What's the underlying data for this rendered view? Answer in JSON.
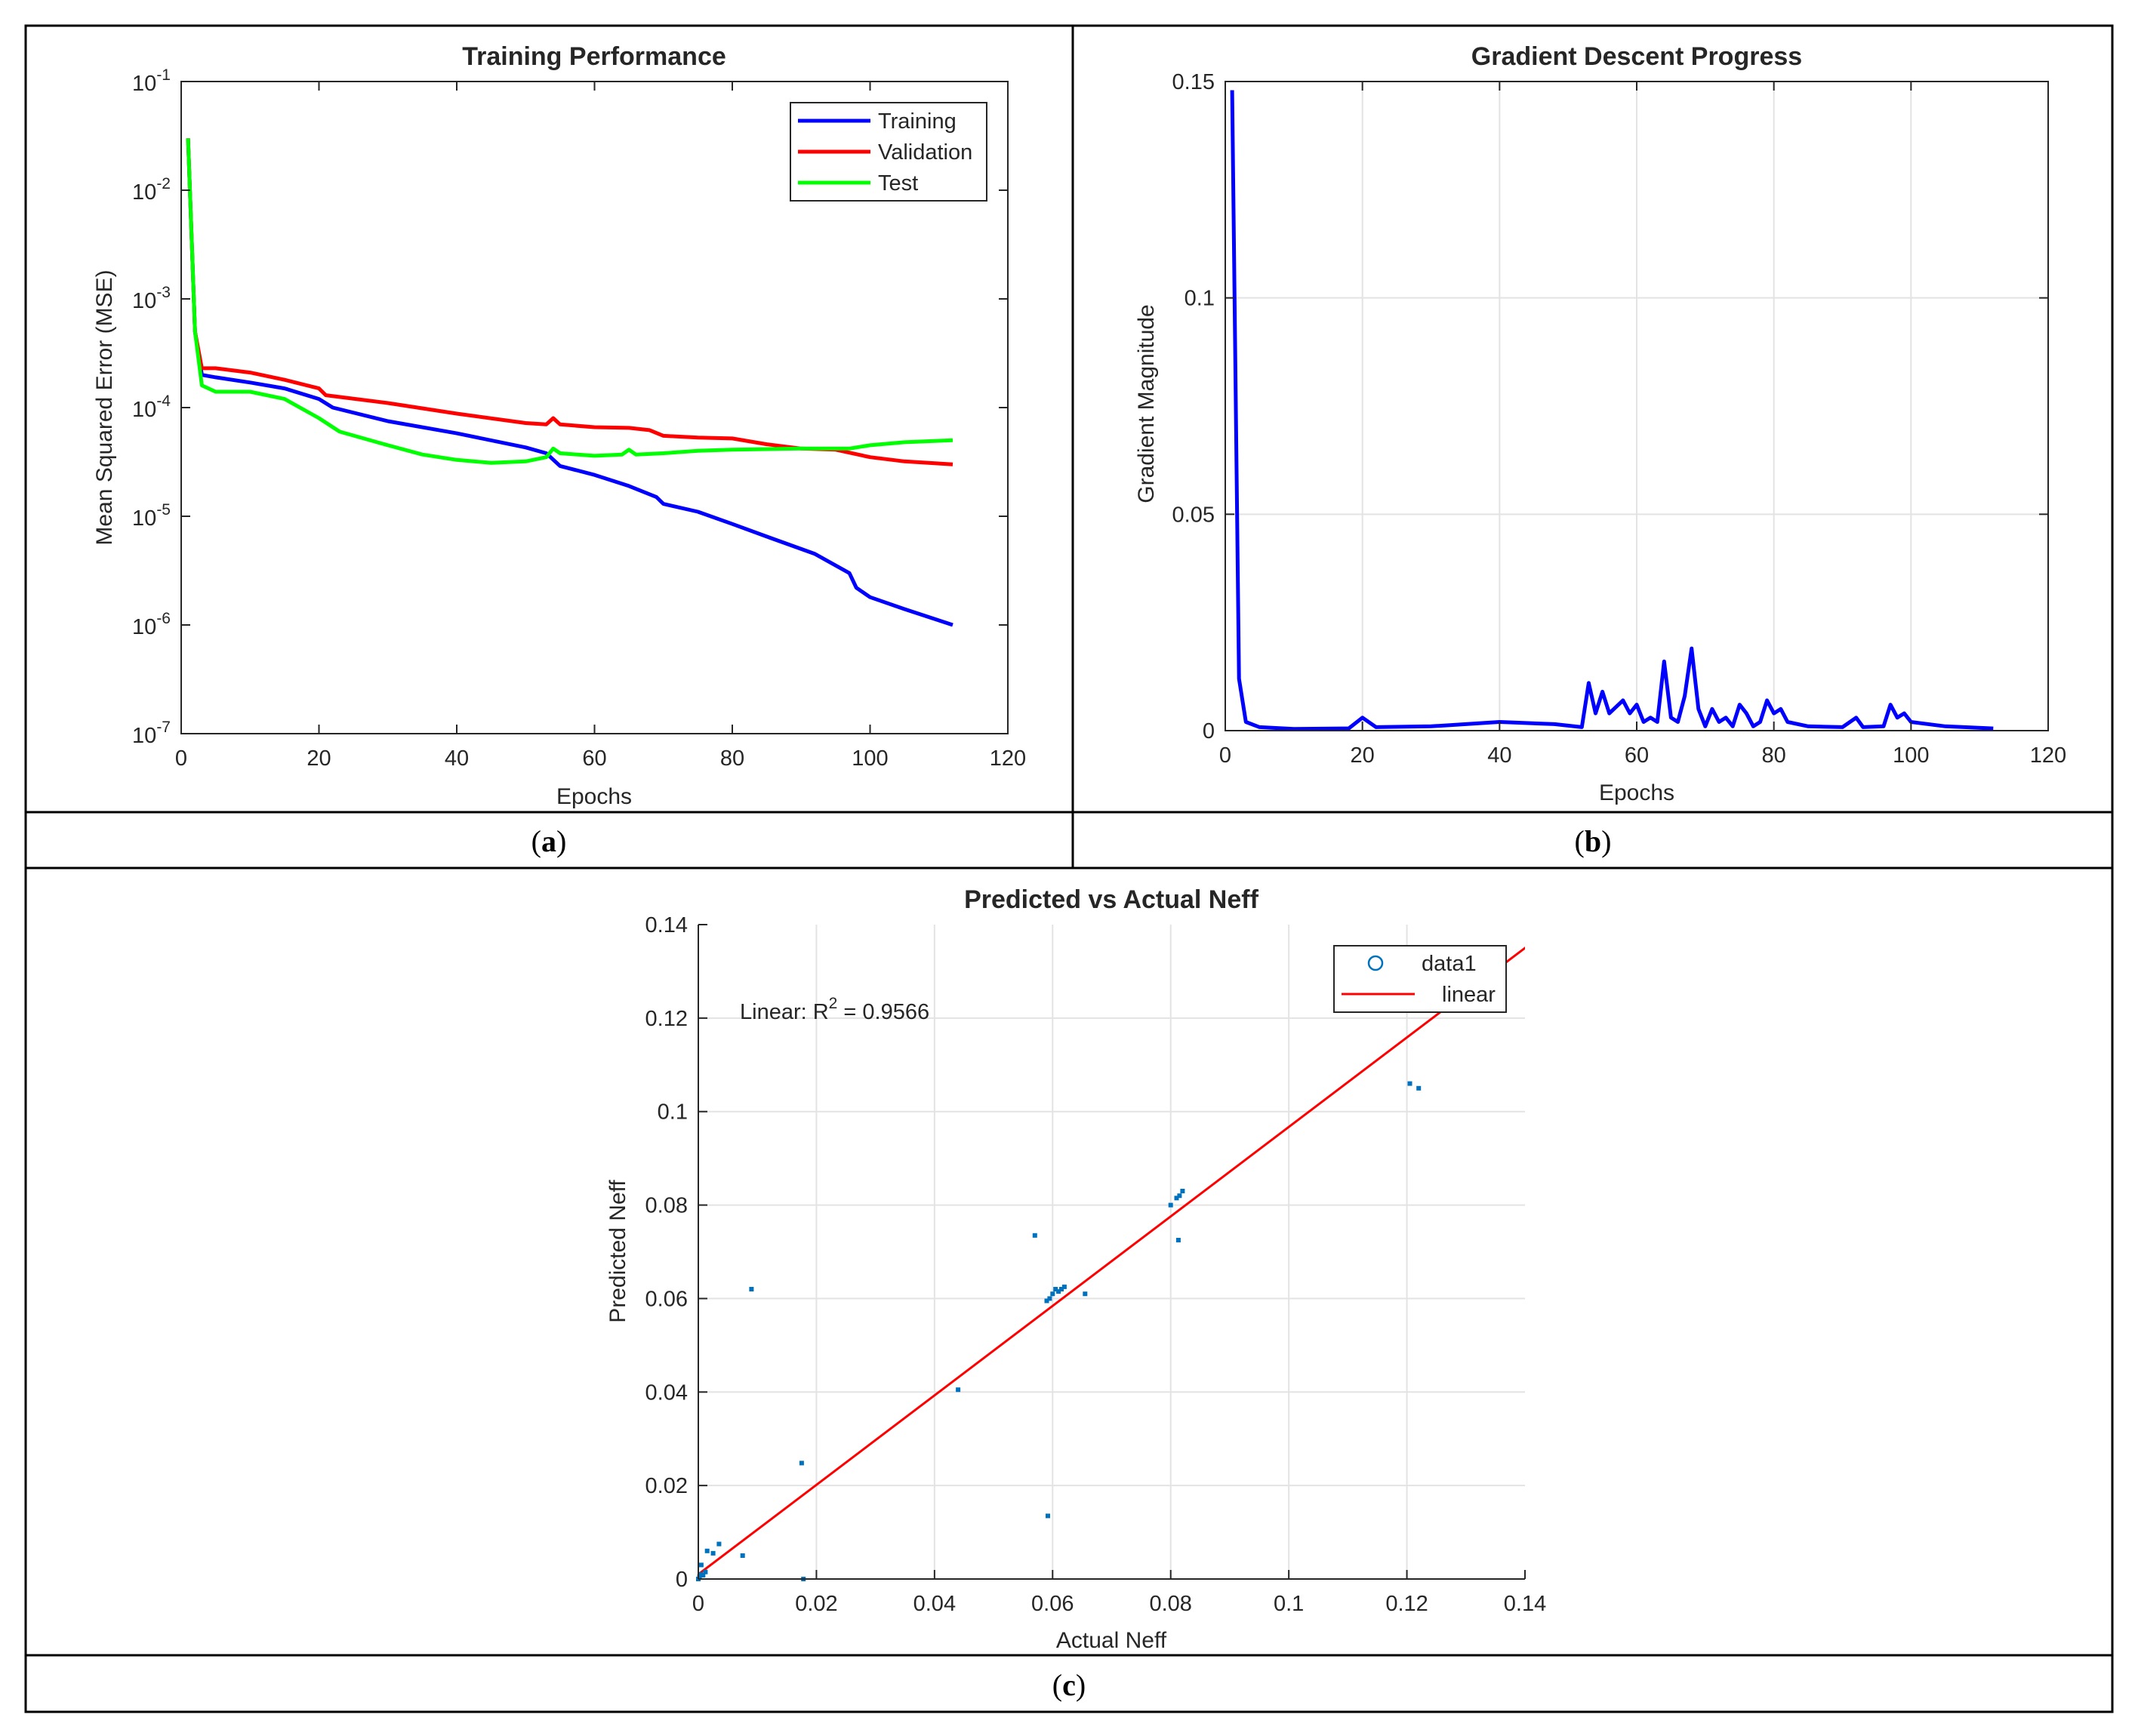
{
  "chart_data": [
    {
      "id": "a",
      "type": "line",
      "title": "Training Performance",
      "xlabel": "Epochs",
      "ylabel": "Mean Squared Error (MSE)",
      "xlim": [
        0,
        120
      ],
      "ylim_log10": [
        -7,
        -1
      ],
      "yscale": "log",
      "xticks": [
        "0",
        "20",
        "40",
        "60",
        "80",
        "100",
        "120"
      ],
      "yticks": [
        {
          "base": "10",
          "exp": "-7"
        },
        {
          "base": "10",
          "exp": "-6"
        },
        {
          "base": "10",
          "exp": "-5"
        },
        {
          "base": "10",
          "exp": "-4"
        },
        {
          "base": "10",
          "exp": "-3"
        },
        {
          "base": "10",
          "exp": "-2"
        },
        {
          "base": "10",
          "exp": "-1"
        }
      ],
      "legend_position": "top-right",
      "series": [
        {
          "name": "Training",
          "color": "#0000ff",
          "points": [
            [
              1,
              0.03
            ],
            [
              2,
              0.0005
            ],
            [
              3,
              0.0002
            ],
            [
              5,
              0.00019
            ],
            [
              10,
              0.00017
            ],
            [
              15,
              0.00015
            ],
            [
              20,
              0.00012
            ],
            [
              22,
              0.0001
            ],
            [
              30,
              7.5e-05
            ],
            [
              40,
              5.8e-05
            ],
            [
              50,
              4.3e-05
            ],
            [
              53,
              3.8e-05
            ],
            [
              55,
              2.9e-05
            ],
            [
              60,
              2.4e-05
            ],
            [
              65,
              1.9e-05
            ],
            [
              69,
              1.5e-05
            ],
            [
              70,
              1.3e-05
            ],
            [
              75,
              1.1e-05
            ],
            [
              80,
              8.5e-06
            ],
            [
              85,
              6.5e-06
            ],
            [
              92,
              4.5e-06
            ],
            [
              97,
              3e-06
            ],
            [
              98,
              2.2e-06
            ],
            [
              100,
              1.8e-06
            ],
            [
              105,
              1.4e-06
            ],
            [
              110,
              1.1e-06
            ],
            [
              112,
              1e-06
            ]
          ]
        },
        {
          "name": "Validation",
          "color": "#ff0000",
          "points": [
            [
              1,
              0.03
            ],
            [
              2,
              0.0005
            ],
            [
              3,
              0.00023
            ],
            [
              5,
              0.00023
            ],
            [
              10,
              0.00021
            ],
            [
              15,
              0.00018
            ],
            [
              20,
              0.00015
            ],
            [
              21,
              0.00013
            ],
            [
              30,
              0.00011
            ],
            [
              40,
              8.8e-05
            ],
            [
              50,
              7.2e-05
            ],
            [
              53,
              7e-05
            ],
            [
              54,
              8e-05
            ],
            [
              55,
              7e-05
            ],
            [
              60,
              6.6e-05
            ],
            [
              65,
              6.5e-05
            ],
            [
              68,
              6.2e-05
            ],
            [
              70,
              5.5e-05
            ],
            [
              75,
              5.3e-05
            ],
            [
              80,
              5.2e-05
            ],
            [
              85,
              4.6e-05
            ],
            [
              90,
              4.2e-05
            ],
            [
              95,
              4.1e-05
            ],
            [
              100,
              3.5e-05
            ],
            [
              105,
              3.2e-05
            ],
            [
              112,
              3e-05
            ]
          ]
        },
        {
          "name": "Test",
          "color": "#00ff00",
          "points": [
            [
              1,
              0.03
            ],
            [
              2,
              0.0005
            ],
            [
              3,
              0.00016
            ],
            [
              5,
              0.00014
            ],
            [
              10,
              0.00014
            ],
            [
              15,
              0.00012
            ],
            [
              20,
              8e-05
            ],
            [
              23,
              6e-05
            ],
            [
              30,
              4.5e-05
            ],
            [
              35,
              3.7e-05
            ],
            [
              40,
              3.3e-05
            ],
            [
              45,
              3.1e-05
            ],
            [
              50,
              3.2e-05
            ],
            [
              53,
              3.5e-05
            ],
            [
              54,
              4.2e-05
            ],
            [
              55,
              3.8e-05
            ],
            [
              60,
              3.6e-05
            ],
            [
              64,
              3.7e-05
            ],
            [
              65,
              4.1e-05
            ],
            [
              66,
              3.7e-05
            ],
            [
              70,
              3.8e-05
            ],
            [
              75,
              4e-05
            ],
            [
              80,
              4.1e-05
            ],
            [
              90,
              4.2e-05
            ],
            [
              97,
              4.2e-05
            ],
            [
              100,
              4.5e-05
            ],
            [
              105,
              4.8e-05
            ],
            [
              112,
              5e-05
            ]
          ]
        }
      ]
    },
    {
      "id": "b",
      "type": "line",
      "title": "Gradient Descent Progress",
      "xlabel": "Epochs",
      "ylabel": "Gradient Magnitude",
      "xlim": [
        0,
        120
      ],
      "ylim": [
        0,
        0.15
      ],
      "xticks": [
        "0",
        "20",
        "40",
        "60",
        "80",
        "100",
        "120"
      ],
      "yticks": [
        {
          "v": 0,
          "label": "0"
        },
        {
          "v": 0.05,
          "label": "0.05"
        },
        {
          "v": 0.1,
          "label": "0.1"
        },
        {
          "v": 0.15,
          "label": "0.15"
        }
      ],
      "series": [
        {
          "name": "Gradient",
          "color": "#0000ff",
          "points": [
            [
              1,
              0.148
            ],
            [
              2,
              0.012
            ],
            [
              3,
              0.002
            ],
            [
              5,
              0.0008
            ],
            [
              10,
              0.0004
            ],
            [
              18,
              0.0005
            ],
            [
              20,
              0.003
            ],
            [
              22,
              0.0008
            ],
            [
              30,
              0.001
            ],
            [
              40,
              0.002
            ],
            [
              48,
              0.0015
            ],
            [
              52,
              0.0008
            ],
            [
              53,
              0.011
            ],
            [
              54,
              0.004
            ],
            [
              55,
              0.009
            ],
            [
              56,
              0.004
            ],
            [
              58,
              0.007
            ],
            [
              59,
              0.004
            ],
            [
              60,
              0.006
            ],
            [
              61,
              0.002
            ],
            [
              62,
              0.003
            ],
            [
              63,
              0.002
            ],
            [
              64,
              0.016
            ],
            [
              65,
              0.003
            ],
            [
              66,
              0.002
            ],
            [
              67,
              0.008
            ],
            [
              68,
              0.019
            ],
            [
              69,
              0.005
            ],
            [
              70,
              0.001
            ],
            [
              71,
              0.005
            ],
            [
              72,
              0.002
            ],
            [
              73,
              0.003
            ],
            [
              74,
              0.001
            ],
            [
              75,
              0.006
            ],
            [
              76,
              0.004
            ],
            [
              77,
              0.001
            ],
            [
              78,
              0.002
            ],
            [
              79,
              0.007
            ],
            [
              80,
              0.004
            ],
            [
              81,
              0.005
            ],
            [
              82,
              0.002
            ],
            [
              85,
              0.001
            ],
            [
              90,
              0.0008
            ],
            [
              92,
              0.003
            ],
            [
              93,
              0.0008
            ],
            [
              96,
              0.001
            ],
            [
              97,
              0.006
            ],
            [
              98,
              0.003
            ],
            [
              99,
              0.004
            ],
            [
              100,
              0.002
            ],
            [
              105,
              0.001
            ],
            [
              112,
              0.0005
            ]
          ]
        }
      ]
    },
    {
      "id": "c",
      "type": "scatter",
      "title": "Predicted vs Actual Neff",
      "xlabel": "Actual Neff",
      "ylabel": "Predicted Neff",
      "xlim": [
        0,
        0.14
      ],
      "ylim": [
        0,
        0.14
      ],
      "xticks": [
        {
          "v": 0,
          "label": "0"
        },
        {
          "v": 0.02,
          "label": "0.02"
        },
        {
          "v": 0.04,
          "label": "0.04"
        },
        {
          "v": 0.06,
          "label": "0.06"
        },
        {
          "v": 0.08,
          "label": "0.08"
        },
        {
          "v": 0.1,
          "label": "0.1"
        },
        {
          "v": 0.12,
          "label": "0.12"
        },
        {
          "v": 0.14,
          "label": "0.14"
        }
      ],
      "yticks": [
        {
          "v": 0,
          "label": "0"
        },
        {
          "v": 0.02,
          "label": "0.02"
        },
        {
          "v": 0.04,
          "label": "0.04"
        },
        {
          "v": 0.06,
          "label": "0.06"
        },
        {
          "v": 0.08,
          "label": "0.08"
        },
        {
          "v": 0.1,
          "label": "0.1"
        },
        {
          "v": 0.12,
          "label": "0.12"
        },
        {
          "v": 0.14,
          "label": "0.14"
        }
      ],
      "annotation": {
        "prefix": "Linear: R",
        "sup": "2",
        "suffix": " = 0.9566"
      },
      "legend_position": "top-right",
      "scatter_series": {
        "name": "data1",
        "color": "#0072bd",
        "points": [
          [
            0.0,
            0.0
          ],
          [
            0.0002,
            0.0005
          ],
          [
            0.0004,
            0.001
          ],
          [
            0.0005,
            0.003
          ],
          [
            0.0008,
            0.0008
          ],
          [
            0.0012,
            0.0015
          ],
          [
            0.0015,
            0.006
          ],
          [
            0.0025,
            0.0055
          ],
          [
            0.0035,
            0.0075
          ],
          [
            0.0075,
            0.005
          ],
          [
            0.009,
            0.062
          ],
          [
            0.0175,
            0.0248
          ],
          [
            0.0178,
            0.0
          ],
          [
            0.044,
            0.0405
          ],
          [
            0.057,
            0.0735
          ],
          [
            0.059,
            0.0595
          ],
          [
            0.0592,
            0.0135
          ],
          [
            0.0595,
            0.06
          ],
          [
            0.06,
            0.061
          ],
          [
            0.0605,
            0.062
          ],
          [
            0.061,
            0.0615
          ],
          [
            0.0615,
            0.062
          ],
          [
            0.062,
            0.0625
          ],
          [
            0.0655,
            0.061
          ],
          [
            0.08,
            0.08
          ],
          [
            0.081,
            0.0815
          ],
          [
            0.0813,
            0.0725
          ],
          [
            0.0815,
            0.082
          ],
          [
            0.082,
            0.083
          ],
          [
            0.1205,
            0.106
          ],
          [
            0.122,
            0.105
          ]
        ]
      },
      "fit_series": {
        "name": "linear",
        "color": "#ff0000",
        "points": [
          [
            0.0,
            0.001
          ],
          [
            0.14,
            0.135
          ]
        ]
      }
    }
  ],
  "captions": {
    "a": "a",
    "b": "b",
    "c": "c"
  }
}
